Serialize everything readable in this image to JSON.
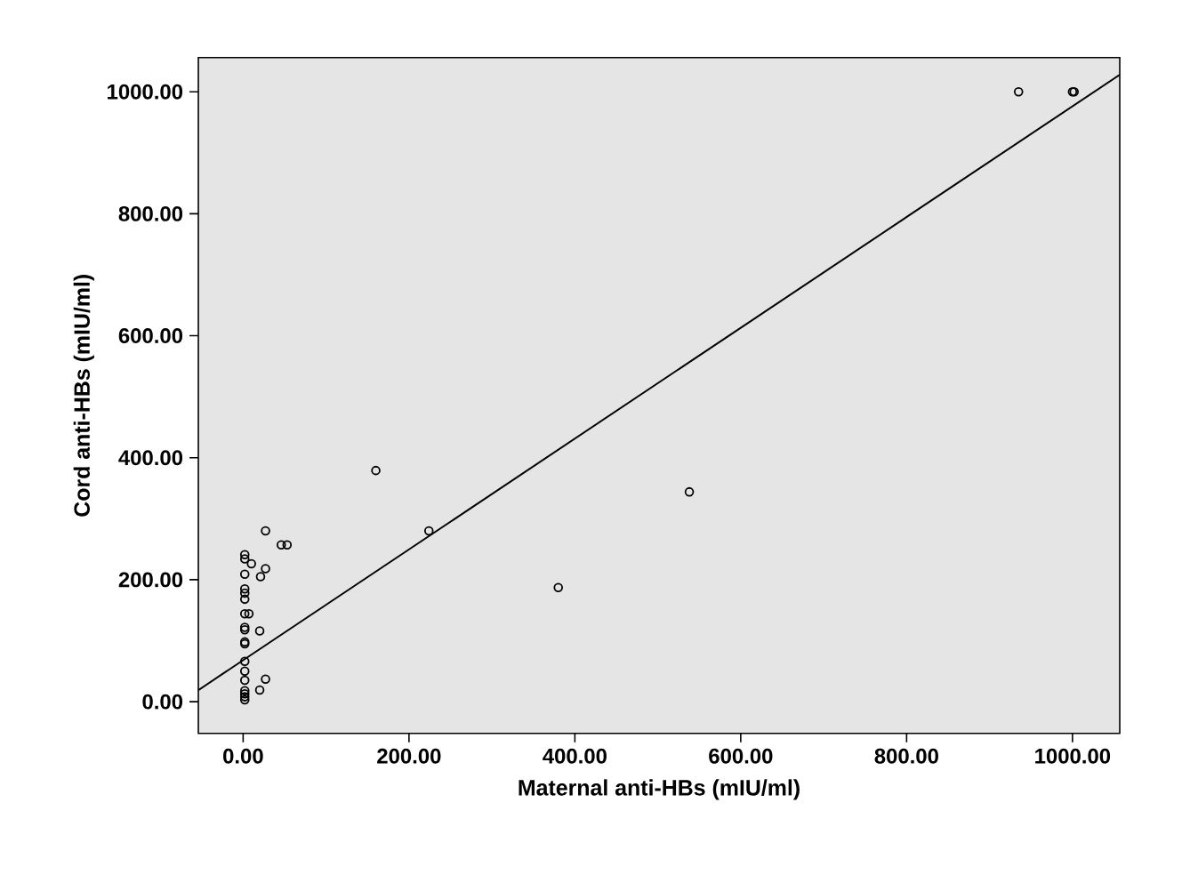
{
  "chart_data": {
    "type": "scatter",
    "xlabel": "Maternal anti-HBs (mIU/ml)",
    "ylabel": "Cord anti-HBs (mIU/ml)",
    "xlim": [
      -54,
      1057
    ],
    "ylim": [
      -52,
      1056
    ],
    "xticks": [
      {
        "value": 0,
        "label": "0.00"
      },
      {
        "value": 200,
        "label": "200.00"
      },
      {
        "value": 400,
        "label": "400.00"
      },
      {
        "value": 600,
        "label": "600.00"
      },
      {
        "value": 800,
        "label": "800.00"
      },
      {
        "value": 1000,
        "label": "1000.00"
      }
    ],
    "yticks": [
      {
        "value": 0,
        "label": "0.00"
      },
      {
        "value": 200,
        "label": "200.00"
      },
      {
        "value": 400,
        "label": "400.00"
      },
      {
        "value": 600,
        "label": "600.00"
      },
      {
        "value": 800,
        "label": "800.00"
      },
      {
        "value": 1000,
        "label": "1000.00"
      }
    ],
    "grid": false,
    "marker": "circle",
    "series": [
      {
        "color": "#000000",
        "x": [
          935,
          1000,
          1002,
          160,
          224,
          538,
          380,
          27,
          46,
          53,
          27,
          21,
          20,
          27,
          20,
          2,
          2,
          2,
          2,
          2,
          2,
          2,
          2,
          2,
          2,
          2,
          2,
          2,
          2,
          2,
          2,
          2,
          2,
          10,
          7
        ],
        "values": [
          1000,
          1000,
          1000,
          379,
          280,
          344,
          187,
          280,
          257,
          257,
          218,
          205,
          116,
          37,
          19,
          241,
          234,
          209,
          185,
          178,
          168,
          144,
          122,
          118,
          98,
          95,
          66,
          50,
          35,
          18,
          13,
          8,
          3,
          226,
          144
        ]
      },
      {
        "type": "line",
        "color": "#000000",
        "marker": "none",
        "x": [
          -54,
          1057
        ],
        "values": [
          19,
          1028
        ]
      }
    ]
  }
}
